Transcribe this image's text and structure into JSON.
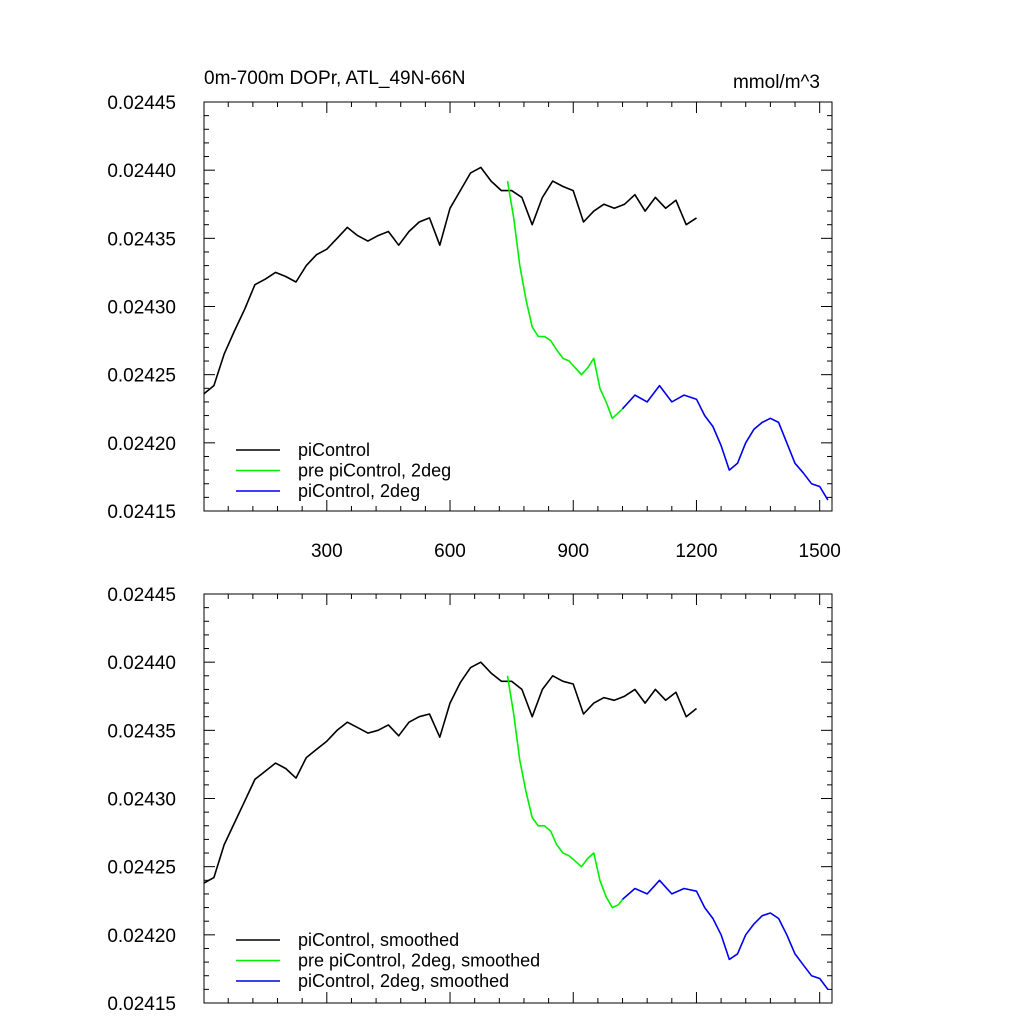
{
  "figure": {
    "title_left": "0m-700m DOPr, ATL_49N-66N",
    "title_right": "mmol/m^3"
  },
  "chart_data": [
    {
      "type": "line",
      "title": "0m-700m DOPr, ATL_49N-66N",
      "units": "mmol/m^3",
      "xlim": [
        1,
        1530
      ],
      "ylim": [
        0.02415,
        0.02445
      ],
      "x_ticks": [
        300,
        600,
        900,
        1200,
        1500
      ],
      "x_tick_labels": [
        "300",
        "600",
        "900",
        "1200",
        "1500"
      ],
      "y_ticks": [
        0.02415,
        0.0242,
        0.02425,
        0.0243,
        0.02435,
        0.0244,
        0.02445
      ],
      "y_tick_labels": [
        "0.02415",
        "0.02420",
        "0.02425",
        "0.02430",
        "0.02435",
        "0.02440",
        "0.02445"
      ],
      "legend_position": "lower-left",
      "series": [
        {
          "name": "piControl",
          "color": "#000000",
          "x": [
            1,
            25,
            50,
            75,
            100,
            125,
            150,
            175,
            200,
            225,
            250,
            275,
            300,
            325,
            350,
            375,
            400,
            425,
            450,
            475,
            500,
            525,
            550,
            575,
            600,
            625,
            650,
            675,
            700,
            725,
            750,
            775,
            800,
            825,
            850,
            875,
            900,
            925,
            950,
            975,
            1000,
            1025,
            1050,
            1075,
            1100,
            1125,
            1150,
            1175,
            1200
          ],
          "y": [
            0.024236,
            0.024242,
            0.024265,
            0.024282,
            0.024298,
            0.024316,
            0.02432,
            0.024325,
            0.024322,
            0.024318,
            0.02433,
            0.024338,
            0.024342,
            0.02435,
            0.024358,
            0.024352,
            0.024348,
            0.024352,
            0.024355,
            0.024345,
            0.024355,
            0.024362,
            0.024365,
            0.024345,
            0.024372,
            0.024385,
            0.024398,
            0.024402,
            0.024392,
            0.024385,
            0.024385,
            0.02438,
            0.02436,
            0.02438,
            0.024392,
            0.024388,
            0.024385,
            0.024362,
            0.02437,
            0.024375,
            0.024372,
            0.024375,
            0.024382,
            0.02437,
            0.02438,
            0.024372,
            0.024378,
            0.02436,
            0.024365
          ]
        },
        {
          "name": "pre piControl, 2deg",
          "color": "#00ee00",
          "x": [
            740,
            755,
            770,
            785,
            800,
            815,
            830,
            845,
            860,
            875,
            890,
            905,
            920,
            935,
            950,
            965,
            980,
            995,
            1010,
            1020
          ],
          "y": [
            0.024392,
            0.024365,
            0.02433,
            0.024305,
            0.024285,
            0.024278,
            0.024278,
            0.024275,
            0.024268,
            0.024262,
            0.02426,
            0.024255,
            0.02425,
            0.024255,
            0.024262,
            0.02424,
            0.02423,
            0.024218,
            0.024222,
            0.024225
          ]
        },
        {
          "name": "piControl, 2deg",
          "color": "#0000ee",
          "x": [
            1020,
            1050,
            1080,
            1110,
            1140,
            1170,
            1200,
            1220,
            1240,
            1260,
            1280,
            1300,
            1320,
            1340,
            1360,
            1380,
            1400,
            1420,
            1440,
            1460,
            1480,
            1500,
            1520
          ],
          "y": [
            0.024225,
            0.024235,
            0.02423,
            0.024242,
            0.02423,
            0.024235,
            0.024232,
            0.02422,
            0.024212,
            0.024198,
            0.02418,
            0.024185,
            0.0242,
            0.02421,
            0.024215,
            0.024218,
            0.024215,
            0.0242,
            0.024185,
            0.024178,
            0.02417,
            0.024168,
            0.024158
          ]
        }
      ]
    },
    {
      "type": "line",
      "title": "",
      "xlim": [
        1,
        1530
      ],
      "ylim": [
        0.02415,
        0.02445
      ],
      "x_ticks": [
        300,
        600,
        900,
        1200,
        1500
      ],
      "x_tick_labels": [
        "",
        "",
        "",
        "",
        ""
      ],
      "y_ticks": [
        0.02415,
        0.0242,
        0.02425,
        0.0243,
        0.02435,
        0.0244,
        0.02445
      ],
      "y_tick_labels": [
        "0.02415",
        "0.02420",
        "0.02425",
        "0.02430",
        "0.02435",
        "0.02440",
        "0.02445"
      ],
      "legend_position": "lower-left",
      "series": [
        {
          "name": "piControl, smoothed",
          "color": "#000000",
          "x": [
            1,
            25,
            50,
            75,
            100,
            125,
            150,
            175,
            200,
            225,
            250,
            275,
            300,
            325,
            350,
            375,
            400,
            425,
            450,
            475,
            500,
            525,
            550,
            575,
            600,
            625,
            650,
            675,
            700,
            725,
            750,
            775,
            800,
            825,
            850,
            875,
            900,
            925,
            950,
            975,
            1000,
            1025,
            1050,
            1075,
            1100,
            1125,
            1150,
            1175,
            1200
          ],
          "y": [
            0.024238,
            0.024242,
            0.024266,
            0.024282,
            0.024298,
            0.024314,
            0.02432,
            0.024326,
            0.024322,
            0.024315,
            0.02433,
            0.024336,
            0.024342,
            0.02435,
            0.024356,
            0.024352,
            0.024348,
            0.02435,
            0.024354,
            0.024346,
            0.024356,
            0.02436,
            0.024362,
            0.024345,
            0.02437,
            0.024385,
            0.024396,
            0.0244,
            0.024392,
            0.024386,
            0.024386,
            0.02438,
            0.02436,
            0.02438,
            0.02439,
            0.024386,
            0.024384,
            0.024362,
            0.02437,
            0.024374,
            0.024372,
            0.024375,
            0.02438,
            0.02437,
            0.02438,
            0.024372,
            0.024378,
            0.02436,
            0.024366
          ]
        },
        {
          "name": "pre piControl, 2deg, smoothed",
          "color": "#00ee00",
          "x": [
            740,
            755,
            770,
            785,
            800,
            815,
            830,
            845,
            860,
            875,
            890,
            905,
            920,
            935,
            950,
            965,
            980,
            995,
            1010,
            1020
          ],
          "y": [
            0.02439,
            0.024362,
            0.024328,
            0.024305,
            0.024286,
            0.02428,
            0.02428,
            0.024276,
            0.024266,
            0.02426,
            0.024258,
            0.024254,
            0.02425,
            0.024256,
            0.02426,
            0.02424,
            0.024228,
            0.02422,
            0.024222,
            0.024226
          ]
        },
        {
          "name": "piControl, 2deg, smoothed",
          "color": "#0000ee",
          "x": [
            1020,
            1050,
            1080,
            1110,
            1140,
            1170,
            1200,
            1220,
            1240,
            1260,
            1280,
            1300,
            1320,
            1340,
            1360,
            1380,
            1400,
            1420,
            1440,
            1460,
            1480,
            1500,
            1520
          ],
          "y": [
            0.024226,
            0.024234,
            0.02423,
            0.02424,
            0.02423,
            0.024234,
            0.024232,
            0.02422,
            0.024212,
            0.0242,
            0.024182,
            0.024186,
            0.0242,
            0.024208,
            0.024214,
            0.024216,
            0.024212,
            0.0242,
            0.024186,
            0.024178,
            0.02417,
            0.024168,
            0.02416
          ]
        }
      ]
    }
  ]
}
